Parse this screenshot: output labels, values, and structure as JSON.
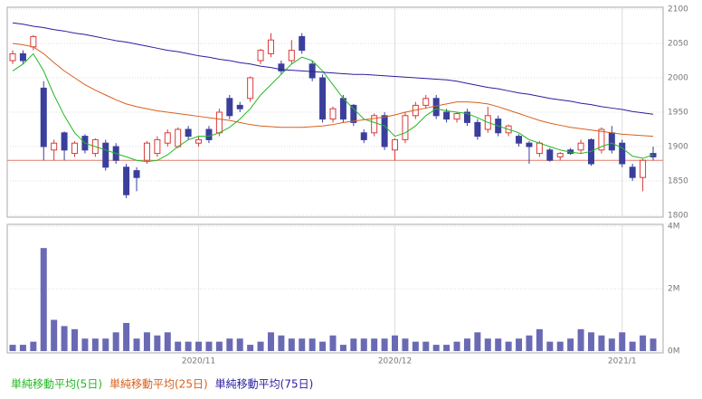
{
  "chart_data": [
    {
      "type": "candlestick",
      "ylim": [
        1800,
        2100
      ],
      "yticks": [
        1800,
        1850,
        1900,
        1950,
        2000,
        2050,
        2100
      ],
      "grid": true,
      "up_color": "#d93a3a",
      "down_color": "#3b3f9c",
      "reference_line": 1880,
      "reference_color": "#e07a6a",
      "open": [
        2025,
        2035,
        2045,
        1985,
        1895,
        1920,
        1890,
        1915,
        1890,
        1905,
        1900,
        1870,
        1865,
        1880,
        1890,
        1905,
        1900,
        1925,
        1905,
        1925,
        1920,
        1970,
        1960,
        1970,
        2025,
        2035,
        2020,
        2025,
        2060,
        2020,
        2000,
        1940,
        1970,
        1960,
        1920,
        1920,
        1945,
        1895,
        1910,
        1945,
        1960,
        1970,
        1950,
        1940,
        1950,
        1935,
        1925,
        1940,
        1920,
        1915,
        1905,
        1890,
        1895,
        1885,
        1895,
        1895,
        1910,
        1895,
        1920,
        1905,
        1870,
        1855,
        1890
      ],
      "high": [
        2040,
        2040,
        2062,
        1995,
        1910,
        1922,
        1908,
        1918,
        1912,
        1910,
        1905,
        1875,
        1870,
        1908,
        1915,
        1925,
        1928,
        1930,
        1915,
        1930,
        1955,
        1975,
        1965,
        2002,
        2042,
        2065,
        2025,
        2055,
        2065,
        2025,
        2005,
        1958,
        1975,
        1962,
        1925,
        1948,
        1950,
        1912,
        1950,
        1965,
        1975,
        1975,
        1955,
        1950,
        1955,
        1940,
        1958,
        1945,
        1932,
        1918,
        1908,
        1908,
        1898,
        1892,
        1898,
        1910,
        1912,
        1928,
        1930,
        1910,
        1875,
        1882,
        1900
      ],
      "low": [
        2020,
        2020,
        2040,
        1880,
        1880,
        1880,
        1885,
        1890,
        1885,
        1865,
        1875,
        1825,
        1835,
        1875,
        1885,
        1900,
        1898,
        1910,
        1900,
        1905,
        1915,
        1940,
        1950,
        1965,
        2020,
        2030,
        2005,
        2020,
        2035,
        1995,
        1935,
        1935,
        1935,
        1930,
        1905,
        1915,
        1895,
        1880,
        1905,
        1940,
        1955,
        1940,
        1935,
        1935,
        1930,
        1910,
        1920,
        1915,
        1915,
        1900,
        1875,
        1885,
        1878,
        1880,
        1888,
        1890,
        1872,
        1890,
        1890,
        1870,
        1850,
        1835,
        1880
      ],
      "close": [
        2035,
        2025,
        2060,
        1900,
        1905,
        1895,
        1905,
        1895,
        1910,
        1870,
        1880,
        1830,
        1855,
        1905,
        1910,
        1920,
        1925,
        1915,
        1910,
        1910,
        1950,
        1945,
        1955,
        2000,
        2040,
        2055,
        2010,
        2040,
        2040,
        2000,
        1940,
        1955,
        1940,
        1935,
        1910,
        1945,
        1900,
        1910,
        1945,
        1960,
        1970,
        1945,
        1940,
        1948,
        1935,
        1915,
        1945,
        1920,
        1930,
        1905,
        1900,
        1905,
        1880,
        1890,
        1890,
        1905,
        1875,
        1925,
        1895,
        1875,
        1855,
        1880,
        1885
      ],
      "series": [
        {
          "name": "単純移動平均(5日)",
          "color": "#22b822",
          "values": [
            2010,
            2020,
            2035,
            2010,
            1975,
            1945,
            1920,
            1905,
            1900,
            1895,
            1890,
            1885,
            1880,
            1878,
            1880,
            1888,
            1900,
            1910,
            1915,
            1915,
            1920,
            1928,
            1940,
            1955,
            1975,
            1990,
            2005,
            2020,
            2030,
            2025,
            2010,
            1990,
            1970,
            1955,
            1940,
            1935,
            1930,
            1915,
            1920,
            1930,
            1945,
            1955,
            1952,
            1950,
            1948,
            1942,
            1935,
            1930,
            1925,
            1920,
            1910,
            1905,
            1900,
            1895,
            1892,
            1890,
            1893,
            1900,
            1905,
            1898,
            1886,
            1883,
            1888
          ]
        },
        {
          "name": "単純移動平均(25日)",
          "color": "#d8601c",
          "values": [
            2050,
            2048,
            2045,
            2035,
            2022,
            2010,
            2000,
            1990,
            1982,
            1975,
            1968,
            1962,
            1958,
            1955,
            1952,
            1950,
            1948,
            1946,
            1944,
            1942,
            1940,
            1938,
            1935,
            1932,
            1930,
            1929,
            1928,
            1928,
            1928,
            1929,
            1930,
            1932,
            1935,
            1937,
            1939,
            1941,
            1943,
            1946,
            1950,
            1953,
            1956,
            1959,
            1962,
            1965,
            1965,
            1964,
            1962,
            1958,
            1953,
            1948,
            1943,
            1938,
            1934,
            1931,
            1928,
            1926,
            1924,
            1922,
            1920,
            1918,
            1917,
            1916,
            1915
          ]
        },
        {
          "name": "単純移動平均(75日)",
          "color": "#2a1d9e",
          "values": [
            2080,
            2078,
            2075,
            2073,
            2070,
            2068,
            2065,
            2063,
            2060,
            2057,
            2054,
            2052,
            2049,
            2046,
            2043,
            2040,
            2038,
            2035,
            2032,
            2030,
            2027,
            2025,
            2022,
            2020,
            2017,
            2015,
            2012,
            2011,
            2010,
            2009,
            2008,
            2007,
            2006,
            2005,
            2005,
            2004,
            2003,
            2002,
            2001,
            2000,
            1999,
            1998,
            1997,
            1995,
            1992,
            1989,
            1986,
            1984,
            1981,
            1978,
            1976,
            1973,
            1970,
            1968,
            1966,
            1963,
            1961,
            1958,
            1956,
            1954,
            1951,
            1949,
            1947
          ]
        }
      ]
    },
    {
      "type": "bar",
      "color": "#6a6ab4",
      "grid": true,
      "ylim": [
        0,
        4000000
      ],
      "yticks": [
        {
          "value": 0,
          "label": "0M"
        },
        {
          "value": 2000000,
          "label": "2M"
        },
        {
          "value": 4000000,
          "label": "4M"
        }
      ],
      "categories": [
        null,
        null,
        null,
        null,
        null,
        null,
        null,
        null,
        null,
        null,
        null,
        null,
        null,
        null,
        null,
        null,
        null,
        null,
        "2020/11",
        null,
        null,
        null,
        null,
        null,
        null,
        null,
        null,
        null,
        null,
        null,
        null,
        null,
        null,
        null,
        null,
        null,
        null,
        "2020/12",
        null,
        null,
        null,
        null,
        null,
        null,
        null,
        null,
        null,
        null,
        null,
        null,
        null,
        null,
        null,
        null,
        null,
        null,
        null,
        null,
        null,
        "2021/1",
        null,
        null,
        null
      ],
      "values": [
        200000,
        200000,
        300000,
        3300000,
        1000000,
        800000,
        700000,
        400000,
        400000,
        400000,
        600000,
        900000,
        400000,
        600000,
        500000,
        600000,
        300000,
        300000,
        300000,
        300000,
        300000,
        400000,
        400000,
        200000,
        300000,
        600000,
        500000,
        400000,
        400000,
        400000,
        300000,
        500000,
        200000,
        400000,
        400000,
        400000,
        400000,
        500000,
        400000,
        300000,
        300000,
        200000,
        200000,
        300000,
        400000,
        600000,
        400000,
        400000,
        300000,
        400000,
        500000,
        700000,
        300000,
        300000,
        400000,
        700000,
        600000,
        500000,
        400000,
        600000,
        300000,
        500000,
        400000
      ]
    }
  ]
}
